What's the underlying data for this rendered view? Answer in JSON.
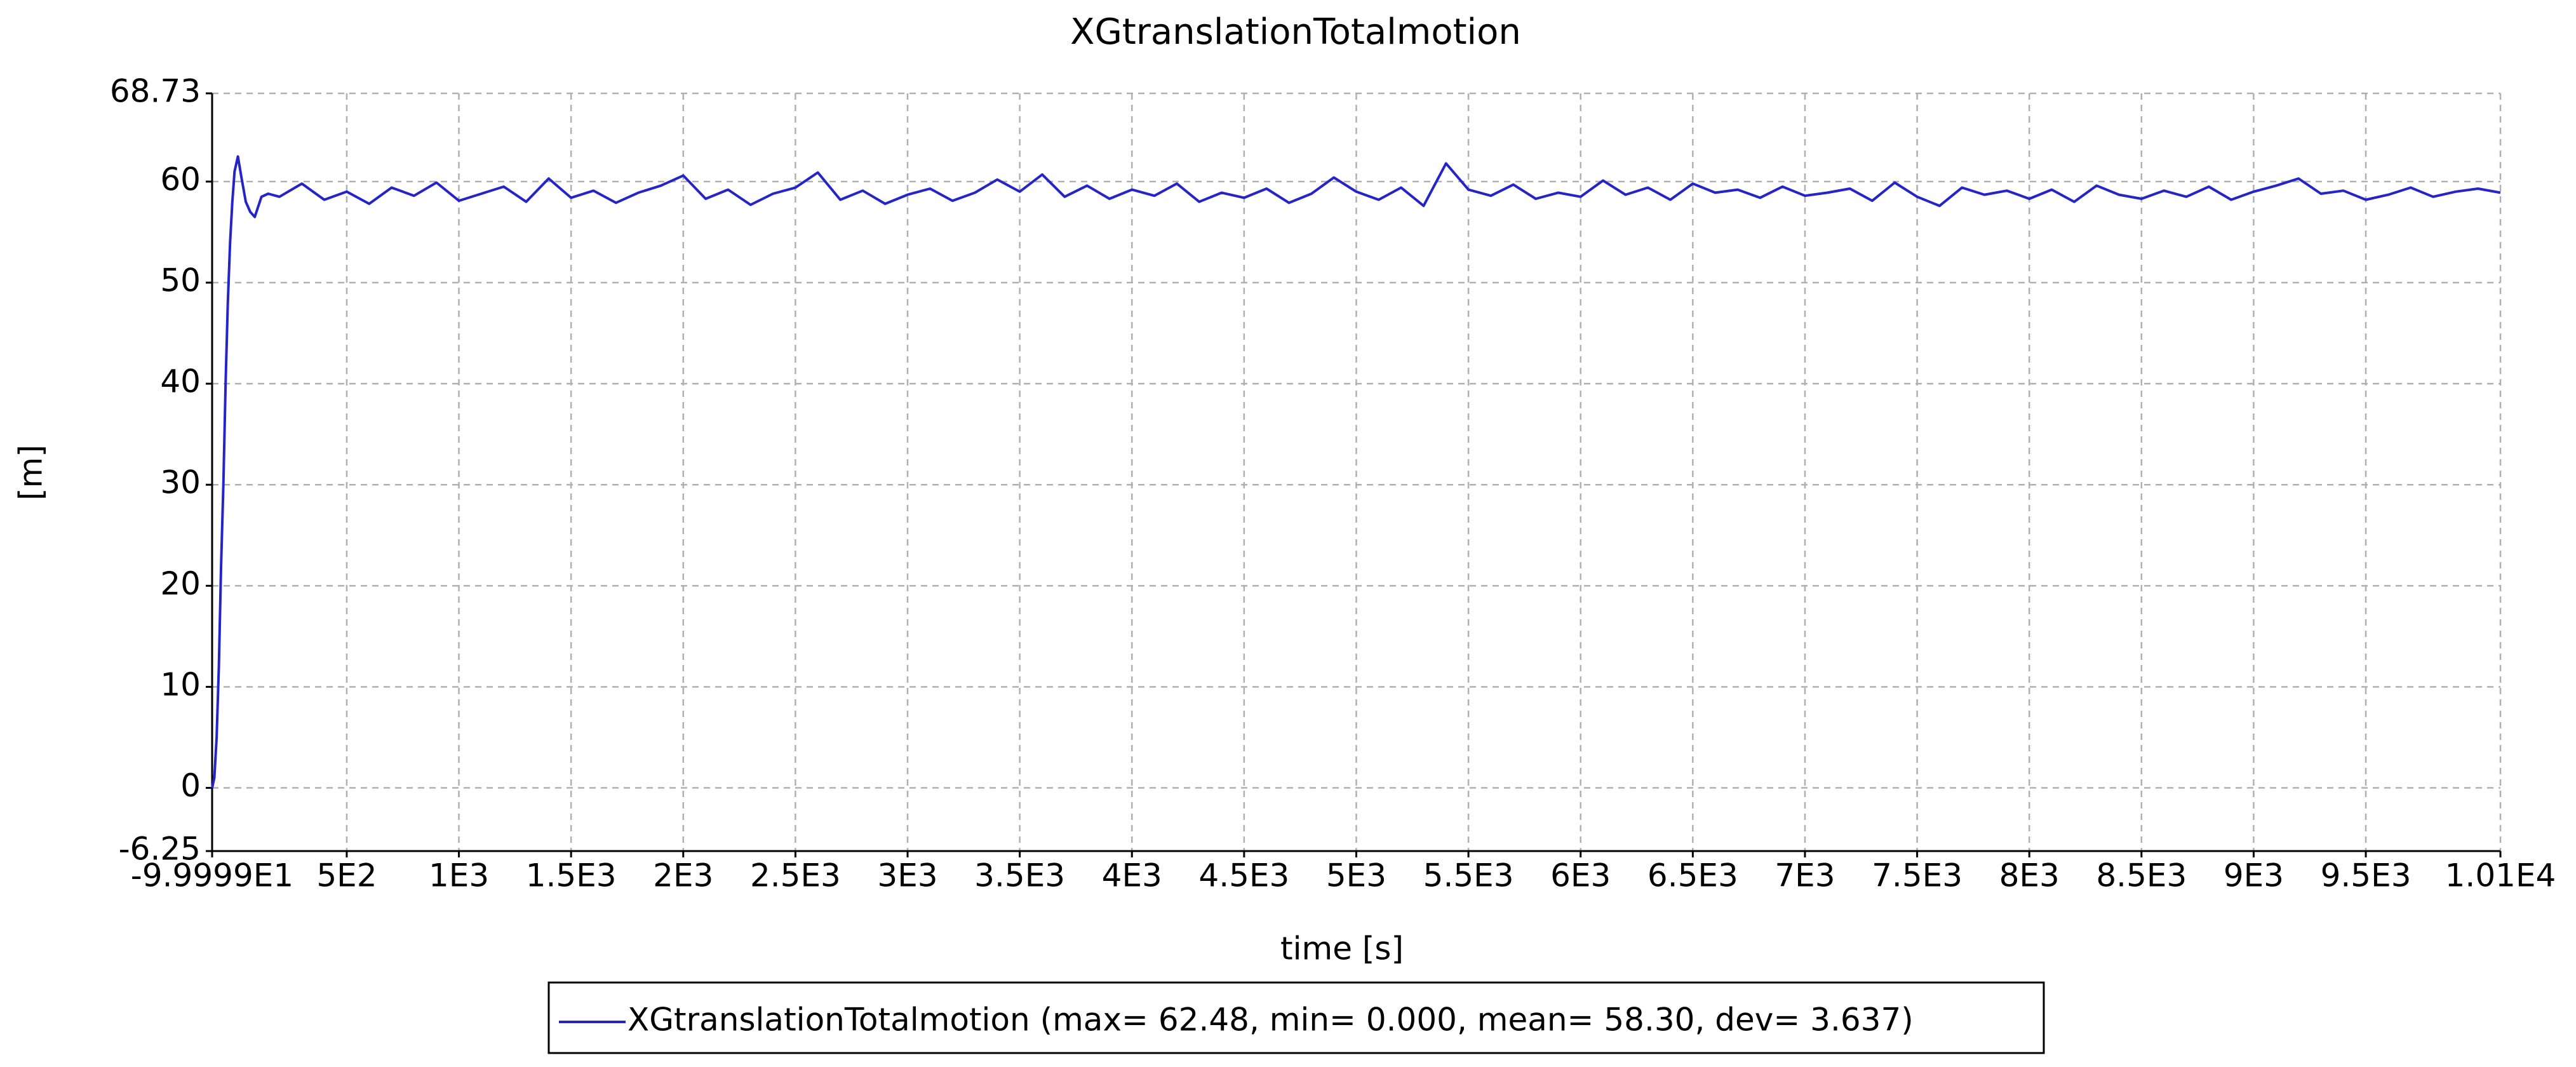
{
  "chart_data": {
    "type": "line",
    "title": "XGtranslationTotalmotion",
    "xlabel": "time [s]",
    "ylabel": "[m]",
    "xlim": [
      -99.999,
      10100
    ],
    "ylim": [
      -6.25,
      68.73
    ],
    "xticks": [
      {
        "value": -99.999,
        "label": "-9.9999E1"
      },
      {
        "value": 500,
        "label": "5E2"
      },
      {
        "value": 1000,
        "label": "1E3"
      },
      {
        "value": 1500,
        "label": "1.5E3"
      },
      {
        "value": 2000,
        "label": "2E3"
      },
      {
        "value": 2500,
        "label": "2.5E3"
      },
      {
        "value": 3000,
        "label": "3E3"
      },
      {
        "value": 3500,
        "label": "3.5E3"
      },
      {
        "value": 4000,
        "label": "4E3"
      },
      {
        "value": 4500,
        "label": "4.5E3"
      },
      {
        "value": 5000,
        "label": "5E3"
      },
      {
        "value": 5500,
        "label": "5.5E3"
      },
      {
        "value": 6000,
        "label": "6E3"
      },
      {
        "value": 6500,
        "label": "6.5E3"
      },
      {
        "value": 7000,
        "label": "7E3"
      },
      {
        "value": 7500,
        "label": "7.5E3"
      },
      {
        "value": 8000,
        "label": "8E3"
      },
      {
        "value": 8500,
        "label": "8.5E3"
      },
      {
        "value": 9000,
        "label": "9E3"
      },
      {
        "value": 9500,
        "label": "9.5E3"
      },
      {
        "value": 10100,
        "label": "1.01E4"
      }
    ],
    "yticks": [
      -6.25,
      0,
      10,
      20,
      30,
      40,
      50,
      60,
      68.73
    ],
    "grid": true,
    "series": [
      {
        "name": "XGtranslationTotalmotion (max= 62.48, min= 0.000, mean= 58.30, dev= 3.637)",
        "color": "#2424c8",
        "x": [
          -100,
          -90,
          -80,
          -70,
          -60,
          -50,
          -40,
          -30,
          -20,
          -10,
          0,
          15,
          30,
          50,
          70,
          90,
          120,
          150,
          200,
          300,
          400,
          500,
          600,
          700,
          800,
          900,
          1000,
          1100,
          1200,
          1300,
          1400,
          1500,
          1600,
          1700,
          1800,
          1900,
          2000,
          2100,
          2200,
          2300,
          2400,
          2500,
          2600,
          2700,
          2800,
          2900,
          3000,
          3100,
          3200,
          3300,
          3400,
          3500,
          3600,
          3700,
          3800,
          3900,
          4000,
          4100,
          4200,
          4300,
          4400,
          4500,
          4600,
          4700,
          4800,
          4900,
          5000,
          5100,
          5200,
          5300,
          5400,
          5500,
          5600,
          5700,
          5800,
          5900,
          6000,
          6100,
          6200,
          6300,
          6400,
          6500,
          6600,
          6700,
          6800,
          6900,
          7000,
          7100,
          7200,
          7300,
          7400,
          7500,
          7600,
          7700,
          7800,
          7900,
          8000,
          8100,
          8200,
          8300,
          8400,
          8500,
          8600,
          8700,
          8800,
          8900,
          9000,
          9100,
          9200,
          9300,
          9400,
          9500,
          9600,
          9700,
          9800,
          9900,
          10000,
          10100
        ],
        "values": [
          0,
          1,
          5,
          12,
          22,
          30,
          40,
          48,
          54,
          58,
          61,
          62.48,
          60.5,
          58,
          57,
          56.5,
          58.5,
          58.8,
          58.5,
          59.8,
          58.2,
          59.0,
          57.8,
          59.4,
          58.6,
          59.9,
          58.1,
          58.8,
          59.5,
          58.0,
          60.3,
          58.4,
          59.1,
          57.9,
          58.9,
          59.6,
          60.6,
          58.3,
          59.2,
          57.7,
          58.8,
          59.4,
          60.9,
          58.2,
          59.1,
          57.8,
          58.7,
          59.3,
          58.1,
          58.9,
          60.2,
          59.0,
          60.7,
          58.5,
          59.6,
          58.3,
          59.2,
          58.6,
          59.8,
          58.0,
          58.9,
          58.4,
          59.3,
          57.9,
          58.8,
          60.4,
          59.0,
          58.2,
          59.4,
          57.6,
          61.8,
          59.2,
          58.6,
          59.7,
          58.3,
          58.9,
          58.5,
          60.1,
          58.7,
          59.4,
          58.2,
          59.8,
          58.9,
          59.2,
          58.4,
          59.5,
          58.6,
          58.9,
          59.3,
          58.1,
          59.9,
          58.5,
          57.6,
          59.4,
          58.7,
          59.1,
          58.3,
          59.2,
          58.0,
          59.6,
          58.7,
          58.3,
          59.1,
          58.5,
          59.5,
          58.2,
          59.0,
          59.6,
          60.3,
          58.8,
          59.1,
          58.2,
          58.7,
          59.4,
          58.5,
          59.0,
          59.3,
          58.9
        ]
      }
    ]
  }
}
